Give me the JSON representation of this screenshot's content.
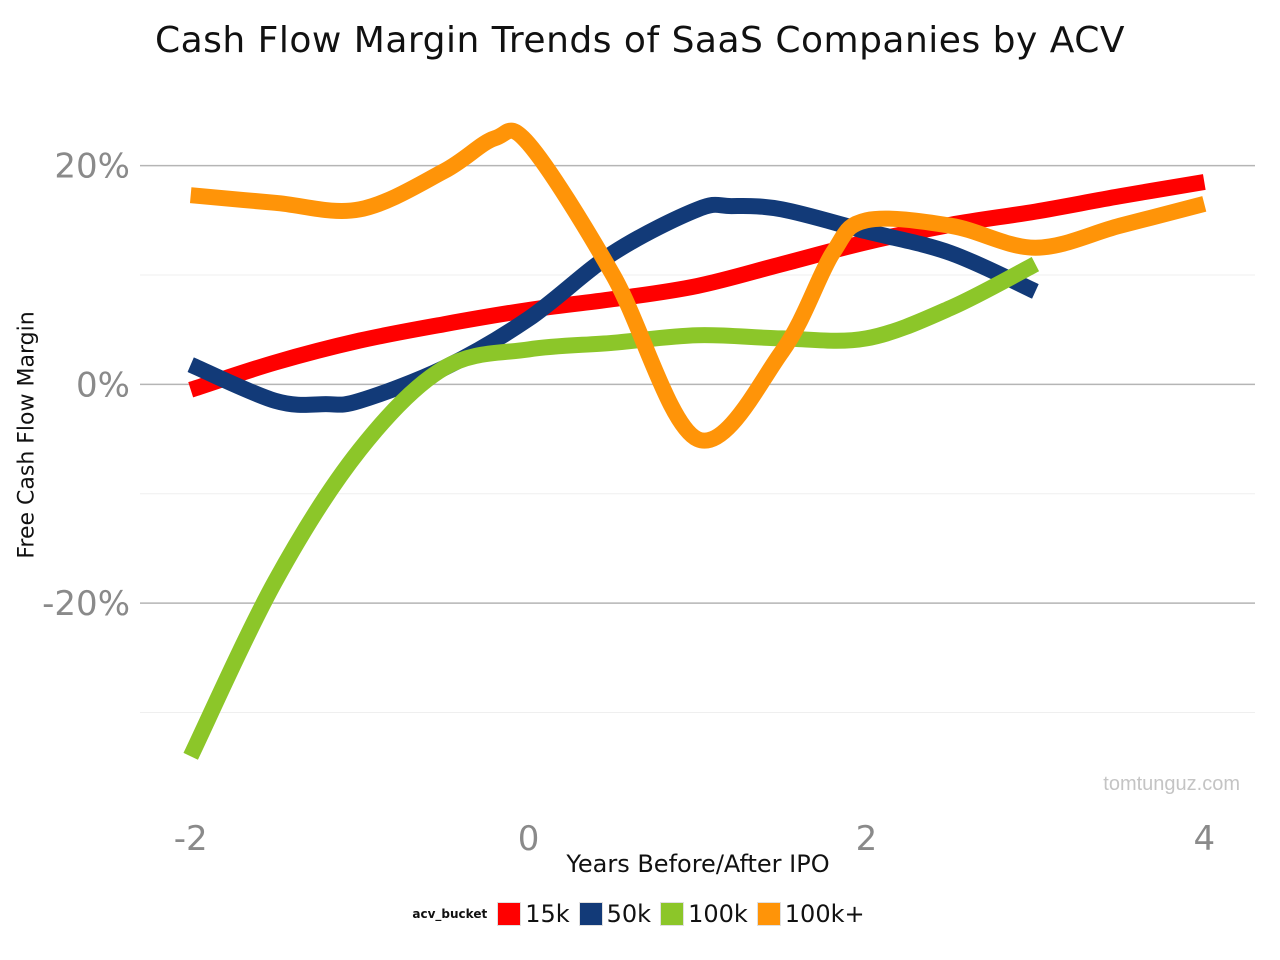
{
  "chart_data": {
    "type": "line",
    "title": "Cash Flow Margin Trends of SaaS Companies by ACV",
    "xlabel": "Years Before/After IPO",
    "ylabel": "Free Cash Flow Margin",
    "xlim": [
      -2.3,
      4.3
    ],
    "ylim": [
      -38,
      26
    ],
    "x_ticks": [
      -2,
      0,
      2,
      4
    ],
    "x_tick_labels": [
      "-2",
      "0",
      "2",
      "4"
    ],
    "y_ticks": [
      20,
      0,
      -20
    ],
    "y_tick_labels": [
      "20%",
      "0%",
      "-20%"
    ],
    "y_minor_ticks": [
      10,
      -10,
      -30
    ],
    "grid": true,
    "legend": {
      "title": "acv_bucket",
      "position": "bottom"
    },
    "watermark": "tomtunguz.com",
    "series": [
      {
        "name": "15k",
        "color": "#ff0000",
        "x": [
          -2,
          -1.5,
          -1,
          -0.5,
          0,
          0.5,
          1,
          1.5,
          2,
          2.5,
          3,
          3.5,
          4
        ],
        "y": [
          -0.5,
          2.0,
          4.0,
          5.5,
          6.8,
          7.8,
          9.0,
          11.0,
          13.0,
          14.6,
          15.8,
          17.2,
          18.5
        ]
      },
      {
        "name": "50k",
        "color": "#123a78",
        "x": [
          -2,
          -1.5,
          -1.2,
          -1,
          -0.5,
          0,
          0.5,
          1,
          1.2,
          1.5,
          2,
          2.5,
          3
        ],
        "y": [
          1.8,
          -1.5,
          -1.8,
          -1.5,
          1.5,
          6.0,
          12.0,
          16.0,
          16.3,
          16.0,
          14.0,
          12.0,
          8.5
        ]
      },
      {
        "name": "100k",
        "color": "#8cc629",
        "x": [
          -2,
          -1.5,
          -1,
          -0.5,
          0,
          0.5,
          1,
          1.5,
          2,
          2.5,
          3
        ],
        "y": [
          -34.0,
          -18.0,
          -6.0,
          1.5,
          3.2,
          3.8,
          4.5,
          4.2,
          4.2,
          7.0,
          11.0
        ]
      },
      {
        "name": "100k+",
        "color": "#ff9408",
        "x": [
          -2,
          -1.5,
          -1,
          -0.5,
          -0.2,
          0,
          0.5,
          1,
          1.5,
          1.8,
          2,
          2.5,
          3,
          3.5,
          4
        ],
        "y": [
          17.3,
          16.6,
          16.0,
          19.5,
          22.5,
          22.0,
          10.0,
          -5.0,
          3.0,
          12.0,
          15.0,
          14.5,
          12.5,
          14.5,
          16.5
        ]
      }
    ]
  }
}
